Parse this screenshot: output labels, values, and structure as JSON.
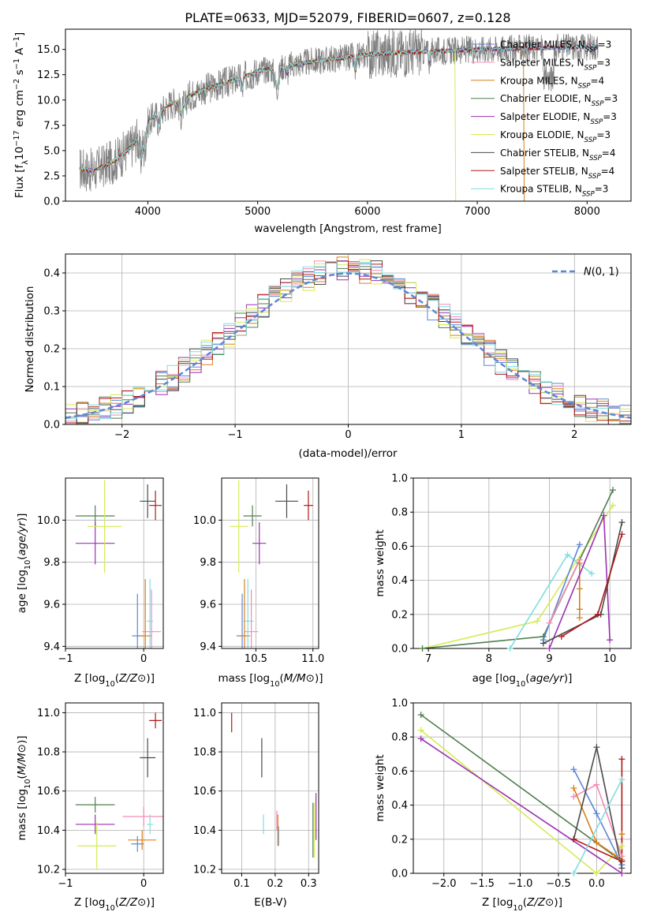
{
  "figure": {
    "title": "PLATE=0633, MJD=52079, FIBERID=0607, z=0.128"
  },
  "palette": {
    "Chabrier MILES": "#5b87d6",
    "Salpeter MILES": "#f58ab5",
    "Kroupa MILES": "#d8801b",
    "Chabrier ELODIE": "#4e7f4e",
    "Salpeter ELODIE": "#9a32b0",
    "Kroupa ELODIE": "#d7ea55",
    "Chabrier STELIB": "#4a4a4a",
    "Salpeter STELIB": "#b01818",
    "Kroupa STELIB": "#7fdde0",
    "data": "#808080",
    "gaussian": "#5b87d6",
    "grid": "#b0b0b0"
  },
  "chart_data": [
    {
      "id": "spectrum",
      "type": "line",
      "title": "PLATE=0633, MJD=52079, FIBERID=0607, z=0.128",
      "xlabel": "wavelength [Angstrom, rest frame]",
      "ylabel": "Flux [f_λ 10^-17 erg cm^-2 s^-1 A^-1]",
      "xlim": [
        3250,
        8400
      ],
      "ylim": [
        0,
        17
      ],
      "xticks": [
        4000,
        5000,
        6000,
        7000,
        8000
      ],
      "yticks": [
        0.0,
        2.5,
        5.0,
        7.5,
        10.0,
        12.5,
        15.0
      ],
      "grid": false,
      "legend_position": "lower-right",
      "legend": [
        {
          "label": "Chabrier MILES",
          "nssp": "3"
        },
        {
          "label": "Salpeter MILES",
          "nssp": "3"
        },
        {
          "label": "Kroupa MILES",
          "nssp": "4"
        },
        {
          "label": "Chabrier ELODIE",
          "nssp": "3"
        },
        {
          "label": "Salpeter ELODIE",
          "nssp": "3"
        },
        {
          "label": "Kroupa ELODIE",
          "nssp": "3"
        },
        {
          "label": "Chabrier STELIB",
          "nssp": "4"
        },
        {
          "label": "Salpeter STELIB",
          "nssp": "4"
        },
        {
          "label": "Kroupa STELIB",
          "nssp": "3"
        }
      ],
      "continuum": {
        "x": [
          3380,
          3500,
          3700,
          3850,
          4000,
          4200,
          4500,
          4800,
          5000,
          5200,
          5500,
          5800,
          6000,
          6300,
          6600,
          7000,
          7400,
          7800,
          8100
        ],
        "y": [
          3.2,
          3.0,
          4.0,
          5.4,
          7.8,
          9.6,
          11.0,
          12.0,
          12.8,
          13.3,
          13.8,
          14.2,
          14.5,
          14.7,
          14.8,
          15.0,
          15.1,
          15.2,
          15.3
        ]
      },
      "model_edges": {
        "Kroupa ELODIE": 6800,
        "Kroupa MILES": 7420
      }
    },
    {
      "id": "residuals",
      "type": "line",
      "xlabel": "(data-model)/error",
      "ylabel": "Normed distribution",
      "xlim": [
        -2.5,
        2.5
      ],
      "ylim": [
        0,
        0.45
      ],
      "xticks": [
        -2,
        -1,
        0,
        1,
        2
      ],
      "yticks": [
        0.0,
        0.1,
        0.2,
        0.3,
        0.4
      ],
      "grid": true,
      "legend_position": "upper-right",
      "legend": [
        {
          "label": "N(0,1)"
        }
      ]
    },
    {
      "id": "age_vs_Z",
      "type": "scatter",
      "xlabel": "Z [log10(Z/Z⊙)]",
      "ylabel": "age  [log10(age/yr)]",
      "xlim": [
        -1.0,
        0.25
      ],
      "ylim": [
        9.39,
        10.2
      ],
      "xticks": [
        -1,
        0
      ],
      "yticks": [
        9.4,
        9.6,
        9.8,
        10.0
      ],
      "grid": true,
      "points": [
        {
          "model": "Chabrier MILES",
          "x": -0.08,
          "xerr": 0.07,
          "y": 9.45,
          "yerr": 0.2
        },
        {
          "model": "Salpeter MILES",
          "x": 0.1,
          "xerr": 0.12,
          "y": 9.47,
          "yerr": 0.2
        },
        {
          "model": "Kroupa MILES",
          "x": 0.02,
          "xerr": 0.08,
          "y": 9.45,
          "yerr": 0.27
        },
        {
          "model": "Chabrier ELODIE",
          "x": -0.62,
          "xerr": 0.25,
          "y": 10.02,
          "yerr": 0.05
        },
        {
          "model": "Salpeter ELODIE",
          "x": -0.62,
          "xerr": 0.25,
          "y": 9.89,
          "yerr": 0.1
        },
        {
          "model": "Kroupa ELODIE",
          "x": -0.5,
          "xerr": 0.22,
          "y": 9.97,
          "yerr": 0.22
        },
        {
          "model": "Chabrier STELIB",
          "x": 0.05,
          "xerr": 0.1,
          "y": 10.09,
          "yerr": 0.08
        },
        {
          "model": "Salpeter STELIB",
          "x": 0.15,
          "xerr": 0.08,
          "y": 10.07,
          "yerr": 0.07
        },
        {
          "model": "Kroupa STELIB",
          "x": 0.08,
          "xerr": 0.04,
          "y": 9.52,
          "yerr": 0.2
        }
      ]
    },
    {
      "id": "age_vs_mass",
      "type": "scatter",
      "xlabel": "mass [log10(M/M⊙)]",
      "ylabel": "",
      "xlim": [
        10.2,
        11.05
      ],
      "ylim": [
        9.39,
        10.2
      ],
      "xticks": [
        10.5,
        11.0
      ],
      "yticks": [
        9.4,
        9.6,
        9.8,
        10.0
      ],
      "grid": true,
      "points": [
        {
          "model": "Chabrier MILES",
          "x": 10.38,
          "xerr": 0.05,
          "y": 9.45,
          "yerr": 0.2
        },
        {
          "model": "Salpeter MILES",
          "x": 10.46,
          "xerr": 0.06,
          "y": 9.47,
          "yerr": 0.2
        },
        {
          "model": "Kroupa MILES",
          "x": 10.4,
          "xerr": 0.05,
          "y": 9.45,
          "yerr": 0.27
        },
        {
          "model": "Chabrier ELODIE",
          "x": 10.47,
          "xerr": 0.08,
          "y": 10.02,
          "yerr": 0.05
        },
        {
          "model": "Salpeter ELODIE",
          "x": 10.53,
          "xerr": 0.06,
          "y": 9.89,
          "yerr": 0.1
        },
        {
          "model": "Kroupa ELODIE",
          "x": 10.35,
          "xerr": 0.08,
          "y": 9.97,
          "yerr": 0.22
        },
        {
          "model": "Chabrier STELIB",
          "x": 10.77,
          "xerr": 0.1,
          "y": 10.09,
          "yerr": 0.08
        },
        {
          "model": "Salpeter STELIB",
          "x": 10.96,
          "xerr": 0.04,
          "y": 10.07,
          "yerr": 0.07
        },
        {
          "model": "Kroupa STELIB",
          "x": 10.43,
          "xerr": 0.05,
          "y": 9.52,
          "yerr": 0.2
        }
      ]
    },
    {
      "id": "weight_vs_age",
      "type": "line",
      "xlabel": "age  [log10(age/yr)]",
      "ylabel": "mass weight",
      "xlim": [
        6.75,
        10.35
      ],
      "ylim": [
        0,
        1
      ],
      "xticks": [
        7,
        8,
        9,
        10
      ],
      "yticks": [
        0.0,
        0.2,
        0.4,
        0.6,
        0.8,
        1.0
      ],
      "grid": true,
      "series": [
        {
          "model": "Kroupa ELODIE",
          "x": [
            6.9,
            8.8,
            10.05
          ],
          "y": [
            0.0,
            0.16,
            0.84
          ]
        },
        {
          "model": "Chabrier ELODIE",
          "x": [
            6.9,
            8.9,
            10.05
          ],
          "y": [
            0.0,
            0.07,
            0.93
          ]
        },
        {
          "model": "Kroupa STELIB",
          "x": [
            8.35,
            9.3,
            9.7
          ],
          "y": [
            0.0,
            0.55,
            0.44
          ]
        },
        {
          "model": "Chabrier MILES",
          "x": [
            8.9,
            9.5
          ],
          "y": [
            0.05,
            0.61
          ]
        },
        {
          "model": "Salpeter MILES",
          "x": [
            9.0,
            9.5
          ],
          "y": [
            0.15,
            0.52
          ]
        },
        {
          "model": "Kroupa MILES",
          "x": [
            9.5,
            9.5,
            9.5,
            9.5
          ],
          "y": [
            0.5,
            0.35,
            0.23,
            0.18
          ]
        },
        {
          "model": "Salpeter ELODIE",
          "x": [
            9.0,
            9.9,
            10.0
          ],
          "y": [
            0.0,
            0.78,
            0.05
          ]
        },
        {
          "model": "Chabrier STELIB",
          "x": [
            8.9,
            9.85,
            10.2
          ],
          "y": [
            0.03,
            0.2,
            0.74
          ]
        },
        {
          "model": "Salpeter STELIB",
          "x": [
            9.2,
            9.8,
            10.2
          ],
          "y": [
            0.07,
            0.2,
            0.67
          ]
        }
      ]
    },
    {
      "id": "mass_vs_Z",
      "type": "scatter",
      "xlabel": "Z [log10(Z/Z⊙)]",
      "ylabel": "mass [log10(M/M⊙)]",
      "xlim": [
        -1.0,
        0.25
      ],
      "ylim": [
        10.18,
        11.05
      ],
      "xticks": [
        -1,
        0
      ],
      "yticks": [
        10.2,
        10.4,
        10.6,
        10.8,
        11.0
      ],
      "grid": true,
      "points": [
        {
          "model": "Chabrier MILES",
          "x": -0.08,
          "xerr": 0.08,
          "y": 10.33,
          "yerr": 0.04
        },
        {
          "model": "Salpeter MILES",
          "x": 0.0,
          "xerr": 0.27,
          "y": 10.47,
          "yerr": 0.05
        },
        {
          "model": "Kroupa MILES",
          "x": -0.02,
          "xerr": 0.18,
          "y": 10.35,
          "yerr": 0.05
        },
        {
          "model": "Chabrier ELODIE",
          "x": -0.62,
          "xerr": 0.25,
          "y": 10.53,
          "yerr": 0.04
        },
        {
          "model": "Salpeter ELODIE",
          "x": -0.62,
          "xerr": 0.25,
          "y": 10.43,
          "yerr": 0.05
        },
        {
          "model": "Kroupa ELODIE",
          "x": -0.6,
          "xerr": 0.25,
          "y": 10.32,
          "yerr": 0.12
        },
        {
          "model": "Chabrier STELIB",
          "x": 0.05,
          "xerr": 0.1,
          "y": 10.77,
          "yerr": 0.1
        },
        {
          "model": "Salpeter STELIB",
          "x": 0.15,
          "xerr": 0.08,
          "y": 10.96,
          "yerr": 0.04
        },
        {
          "model": "Kroupa STELIB",
          "x": 0.08,
          "xerr": 0.04,
          "y": 10.43,
          "yerr": 0.05
        }
      ]
    },
    {
      "id": "mass_vs_EBV",
      "type": "scatter",
      "xlabel": "E(B-V)",
      "ylabel": "",
      "xlim": [
        0.04,
        0.33
      ],
      "ylim": [
        10.18,
        11.05
      ],
      "xticks": [
        0.1,
        0.2,
        0.3
      ],
      "yticks": [
        10.2,
        10.4,
        10.6,
        10.8,
        11.0
      ],
      "grid": true,
      "points": [
        {
          "model": "Chabrier MILES",
          "x": 0.21,
          "xerr": 0,
          "y": 10.37,
          "yerr": 0.05
        },
        {
          "model": "Salpeter MILES",
          "x": 0.205,
          "xerr": 0,
          "y": 10.45,
          "yerr": 0.05
        },
        {
          "model": "Kroupa MILES",
          "x": 0.208,
          "xerr": 0,
          "y": 10.4,
          "yerr": 0.08
        },
        {
          "model": "Chabrier ELODIE",
          "x": 0.313,
          "xerr": 0,
          "y": 10.4,
          "yerr": 0.14
        },
        {
          "model": "Salpeter ELODIE",
          "x": 0.322,
          "xerr": 0,
          "y": 10.47,
          "yerr": 0.12
        },
        {
          "model": "Kroupa ELODIE",
          "x": 0.317,
          "xerr": 0,
          "y": 10.4,
          "yerr": 0.14
        },
        {
          "model": "Chabrier STELIB",
          "x": 0.16,
          "xerr": 0,
          "y": 10.77,
          "yerr": 0.1
        },
        {
          "model": "Salpeter STELIB",
          "x": 0.07,
          "xerr": 0,
          "y": 10.95,
          "yerr": 0.05
        },
        {
          "model": "Kroupa STELIB",
          "x": 0.165,
          "xerr": 0,
          "y": 10.43,
          "yerr": 0.05
        }
      ]
    },
    {
      "id": "weight_vs_Z",
      "type": "line",
      "xlabel": "Z [log10(Z/Z⊙)]",
      "ylabel": "mass weight",
      "xlim": [
        -2.4,
        0.45
      ],
      "ylim": [
        0,
        1
      ],
      "xticks": [
        -2.0,
        -1.5,
        -1.0,
        -0.5,
        0.0
      ],
      "yticks": [
        0.0,
        0.2,
        0.4,
        0.6,
        0.8,
        1.0
      ],
      "grid": true,
      "series": [
        {
          "model": "Chabrier ELODIE",
          "x": [
            -2.3,
            0.33
          ],
          "y": [
            0.93,
            0.07
          ]
        },
        {
          "model": "Kroupa ELODIE",
          "x": [
            -2.3,
            0.0,
            0.33
          ],
          "y": [
            0.84,
            0.0,
            0.16
          ]
        },
        {
          "model": "Salpeter ELODIE",
          "x": [
            -2.3,
            0.33
          ],
          "y": [
            0.79,
            0.0
          ]
        },
        {
          "model": "Chabrier MILES",
          "x": [
            -0.3,
            0.0,
            0.33
          ],
          "y": [
            0.61,
            0.35,
            0.05
          ]
        },
        {
          "model": "Salpeter MILES",
          "x": [
            -0.3,
            0.0,
            0.33
          ],
          "y": [
            0.45,
            0.52,
            0.1
          ]
        },
        {
          "model": "Kroupa MILES",
          "x": [
            -0.3,
            0.0,
            0.33,
            0.33
          ],
          "y": [
            0.5,
            0.18,
            0.08,
            0.23
          ]
        },
        {
          "model": "Chabrier STELIB",
          "x": [
            -0.3,
            0.0,
            0.33
          ],
          "y": [
            0.2,
            0.74,
            0.03
          ]
        },
        {
          "model": "Salpeter STELIB",
          "x": [
            -0.3,
            0.33,
            0.33
          ],
          "y": [
            0.2,
            0.07,
            0.67
          ]
        },
        {
          "model": "Kroupa STELIB",
          "x": [
            -0.3,
            0.33
          ],
          "y": [
            0.0,
            0.55
          ]
        }
      ]
    }
  ]
}
